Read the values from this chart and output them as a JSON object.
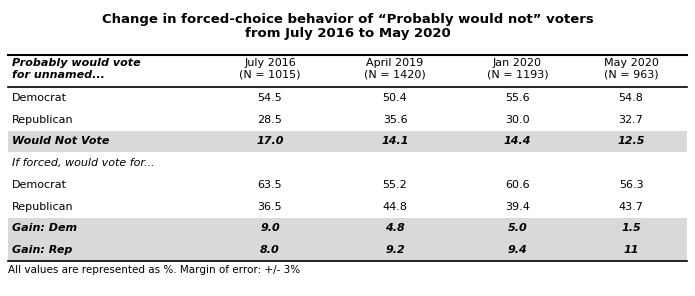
{
  "title_line1": "Change in forced-choice behavior of “Probably would not” voters",
  "title_line2": "from July 2016 to May 2020",
  "col0_header_line1": "Probably would vote",
  "col0_header_line2": "for unnamed...",
  "col_headers": [
    "July 2016\n(N = 1015)",
    "April 2019\n(N = 1420)",
    "Jan 2020\n(N = 1193)",
    "May 2020\n(N = 963)"
  ],
  "rows": [
    {
      "label": "Democrat",
      "values": [
        "54.5",
        "50.4",
        "55.6",
        "54.8"
      ],
      "bold": false,
      "italic": false,
      "shaded": false,
      "section_header": false
    },
    {
      "label": "Republican",
      "values": [
        "28.5",
        "35.6",
        "30.0",
        "32.7"
      ],
      "bold": false,
      "italic": false,
      "shaded": false,
      "section_header": false
    },
    {
      "label": "Would Not Vote",
      "values": [
        "17.0",
        "14.1",
        "14.4",
        "12.5"
      ],
      "bold": true,
      "italic": true,
      "shaded": true,
      "section_header": false
    },
    {
      "label": "If forced, would vote for...",
      "values": [
        "",
        "",
        "",
        ""
      ],
      "bold": false,
      "italic": true,
      "shaded": false,
      "section_header": true
    },
    {
      "label": "Democrat",
      "values": [
        "63.5",
        "55.2",
        "60.6",
        "56.3"
      ],
      "bold": false,
      "italic": false,
      "shaded": false,
      "section_header": false
    },
    {
      "label": "Republican",
      "values": [
        "36.5",
        "44.8",
        "39.4",
        "43.7"
      ],
      "bold": false,
      "italic": false,
      "shaded": false,
      "section_header": false
    },
    {
      "label": "Gain: Dem",
      "values": [
        "9.0",
        "4.8",
        "5.0",
        "1.5"
      ],
      "bold": true,
      "italic": true,
      "shaded": true,
      "section_header": false
    },
    {
      "label": "Gain: Rep",
      "values": [
        "8.0",
        "9.2",
        "9.4",
        "11"
      ],
      "bold": true,
      "italic": true,
      "shaded": true,
      "section_header": false
    }
  ],
  "footer": "All values are represented as %. Margin of error: +/- 3%",
  "shaded_color": "#d9d9d9",
  "bg_color": "#ffffff"
}
